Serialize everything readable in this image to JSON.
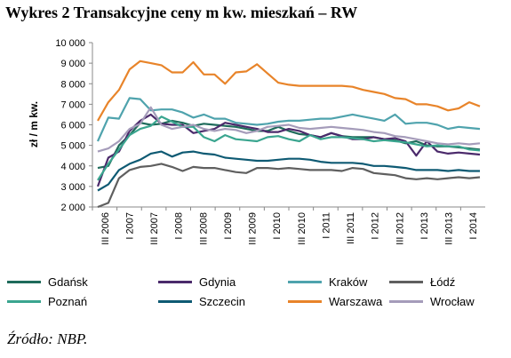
{
  "title": "Wykres 2 Transakcyjne ceny m kw. mieszkań – RW",
  "source": "Źródło: NBP.",
  "chart_data": {
    "type": "line",
    "ylabel": "zł / m kw.",
    "ylim": [
      2000,
      10000
    ],
    "yticks": [
      "2 000",
      "3 000",
      "4 000",
      "5 000",
      "6 000",
      "7 000",
      "8 000",
      "9 000",
      "10 000"
    ],
    "grid": false,
    "legend_position": "bottom",
    "xtick_labels": [
      "III 2006",
      "I 2007",
      "III 2007",
      "I 2008",
      "III 2008",
      "I 2009",
      "III 2009",
      "I 2010",
      "III 2010",
      "I 2011",
      "III 2011",
      "I 2012",
      "III 2012",
      "I 2013",
      "III 2013",
      "I 2014"
    ],
    "series": [
      {
        "name": "Gdańsk",
        "color": "#1f6b5b",
        "values": [
          3900,
          4000,
          5000,
          5500,
          6100,
          6000,
          6050,
          6200,
          6100,
          5950,
          6050,
          6000,
          5950,
          5900,
          5800,
          5700,
          5700,
          5900,
          5700,
          5550,
          5500,
          5400,
          5600,
          5450,
          5400,
          5400,
          5400,
          5300,
          5250,
          5100,
          5200,
          5000,
          4950,
          4950,
          4900,
          4850,
          4800
        ]
      },
      {
        "name": "Gdynia",
        "color": "#4b2a6b",
        "values": [
          3000,
          4400,
          4700,
          5700,
          6200,
          6500,
          6050,
          6000,
          6000,
          5600,
          5700,
          5800,
          6100,
          6000,
          5900,
          5800,
          5650,
          5650,
          5800,
          5700,
          5500,
          5400,
          5600,
          5450,
          5300,
          5300,
          5400,
          5300,
          5350,
          5200,
          4500,
          5200,
          4700,
          4600,
          4650,
          4600,
          4550
        ]
      },
      {
        "name": "Kraków",
        "color": "#4fa3ad",
        "values": [
          5200,
          6350,
          6300,
          7300,
          7250,
          6700,
          6750,
          6750,
          6600,
          6350,
          6500,
          6300,
          6300,
          6100,
          6050,
          6000,
          6050,
          6150,
          6200,
          6200,
          6250,
          6300,
          6300,
          6400,
          6500,
          6400,
          6300,
          6200,
          6500,
          6050,
          6100,
          6100,
          6000,
          5800,
          5900,
          5850,
          5800
        ]
      },
      {
        "name": "Łódź",
        "color": "#5f5f5f",
        "values": [
          2000,
          2200,
          3400,
          3800,
          3950,
          4000,
          4100,
          3950,
          3750,
          3950,
          3900,
          3900,
          3800,
          3700,
          3650,
          3900,
          3900,
          3850,
          3900,
          3850,
          3800,
          3800,
          3800,
          3750,
          3900,
          3850,
          3650,
          3600,
          3550,
          3400,
          3350,
          3400,
          3350,
          3400,
          3450,
          3400,
          3450
        ]
      },
      {
        "name": "Poznań",
        "color": "#3aa58f",
        "values": [
          3300,
          4100,
          4800,
          5500,
          5800,
          5950,
          6400,
          6150,
          5900,
          5900,
          5400,
          5200,
          5500,
          5300,
          5250,
          5200,
          5400,
          5450,
          5300,
          5200,
          5500,
          5300,
          5400,
          5400,
          5350,
          5300,
          5200,
          5250,
          5200,
          5150,
          5050,
          4950,
          5000,
          4950,
          4950,
          4800,
          4750
        ]
      },
      {
        "name": "Szczecin",
        "color": "#0e5a73",
        "values": [
          2800,
          3100,
          3800,
          4100,
          4300,
          4600,
          4700,
          4450,
          4650,
          4700,
          4600,
          4550,
          4400,
          4350,
          4300,
          4250,
          4250,
          4300,
          4350,
          4350,
          4300,
          4200,
          4150,
          4150,
          4150,
          4100,
          4000,
          4000,
          3950,
          3900,
          3800,
          3800,
          3800,
          3750,
          3800,
          3750,
          3750
        ]
      },
      {
        "name": "Warszawa",
        "color": "#e8842a",
        "values": [
          6200,
          7100,
          7700,
          8700,
          9100,
          9000,
          8900,
          8550,
          8550,
          9050,
          8450,
          8450,
          8000,
          8550,
          8600,
          8950,
          8500,
          8050,
          7950,
          7900,
          7900,
          7900,
          7900,
          7900,
          7850,
          7700,
          7600,
          7500,
          7300,
          7250,
          7000,
          7000,
          6900,
          6700,
          6800,
          7100,
          6900
        ]
      },
      {
        "name": "Wrocław",
        "color": "#a59cba",
        "values": [
          4700,
          4850,
          5200,
          5800,
          6050,
          6850,
          6000,
          5800,
          5900,
          6000,
          5800,
          5700,
          5800,
          5750,
          5600,
          5700,
          5900,
          5950,
          6000,
          5850,
          5800,
          5850,
          5900,
          5850,
          5800,
          5750,
          5650,
          5600,
          5450,
          5400,
          5300,
          5200,
          5100,
          5050,
          5100,
          5050,
          5100
        ]
      }
    ]
  }
}
